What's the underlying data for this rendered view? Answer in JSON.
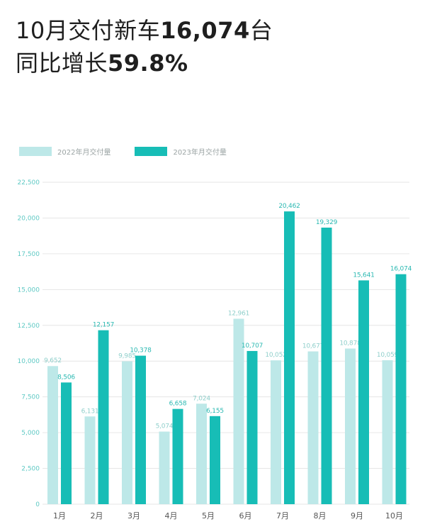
{
  "headline": {
    "line1_prefix": "10月交付新车",
    "line1_bold": "16,074",
    "line1_suffix": "台",
    "line2_prefix": "同比增长",
    "line2_bold": "59.8%"
  },
  "colors": {
    "series_2022": "#bde8e8",
    "series_2023": "#17bdb6",
    "axis_text": "#5fc9c4",
    "gridline": "#e6e6e6"
  },
  "chart_data": {
    "type": "bar",
    "categories": [
      "1月",
      "2月",
      "3月",
      "4月",
      "5月",
      "6月",
      "7月",
      "8月",
      "9月",
      "10月"
    ],
    "series": [
      {
        "name": "2022年月交付量",
        "values": [
          9652,
          6131,
          9985,
          5074,
          7024,
          12961,
          10052,
          10677,
          10878,
          10059
        ]
      },
      {
        "name": "2023年月交付量",
        "values": [
          8506,
          12157,
          10378,
          6658,
          6155,
          10707,
          20462,
          19329,
          15641,
          16074
        ]
      }
    ],
    "value_labels": [
      [
        "9,652",
        "6,131",
        "9,985",
        "5,074",
        "7,024",
        "12,961",
        "10,052",
        "10,677",
        "10,878",
        "10,059"
      ],
      [
        "8,506",
        "12,157",
        "10,378",
        "6,658",
        "6,155",
        "10,707",
        "20,462",
        "19,329",
        "15,641",
        "16,074"
      ]
    ],
    "ylim": [
      0,
      22500
    ],
    "yticks": [
      0,
      2500,
      5000,
      7500,
      10000,
      12500,
      15000,
      17500,
      20000,
      22500
    ],
    "ytick_labels": [
      "0",
      "2,500",
      "5,000",
      "7,500",
      "10,000",
      "12,500",
      "15,000",
      "17,500",
      "20,000",
      "22,500"
    ],
    "grid": true,
    "legend_position": "top-left"
  }
}
